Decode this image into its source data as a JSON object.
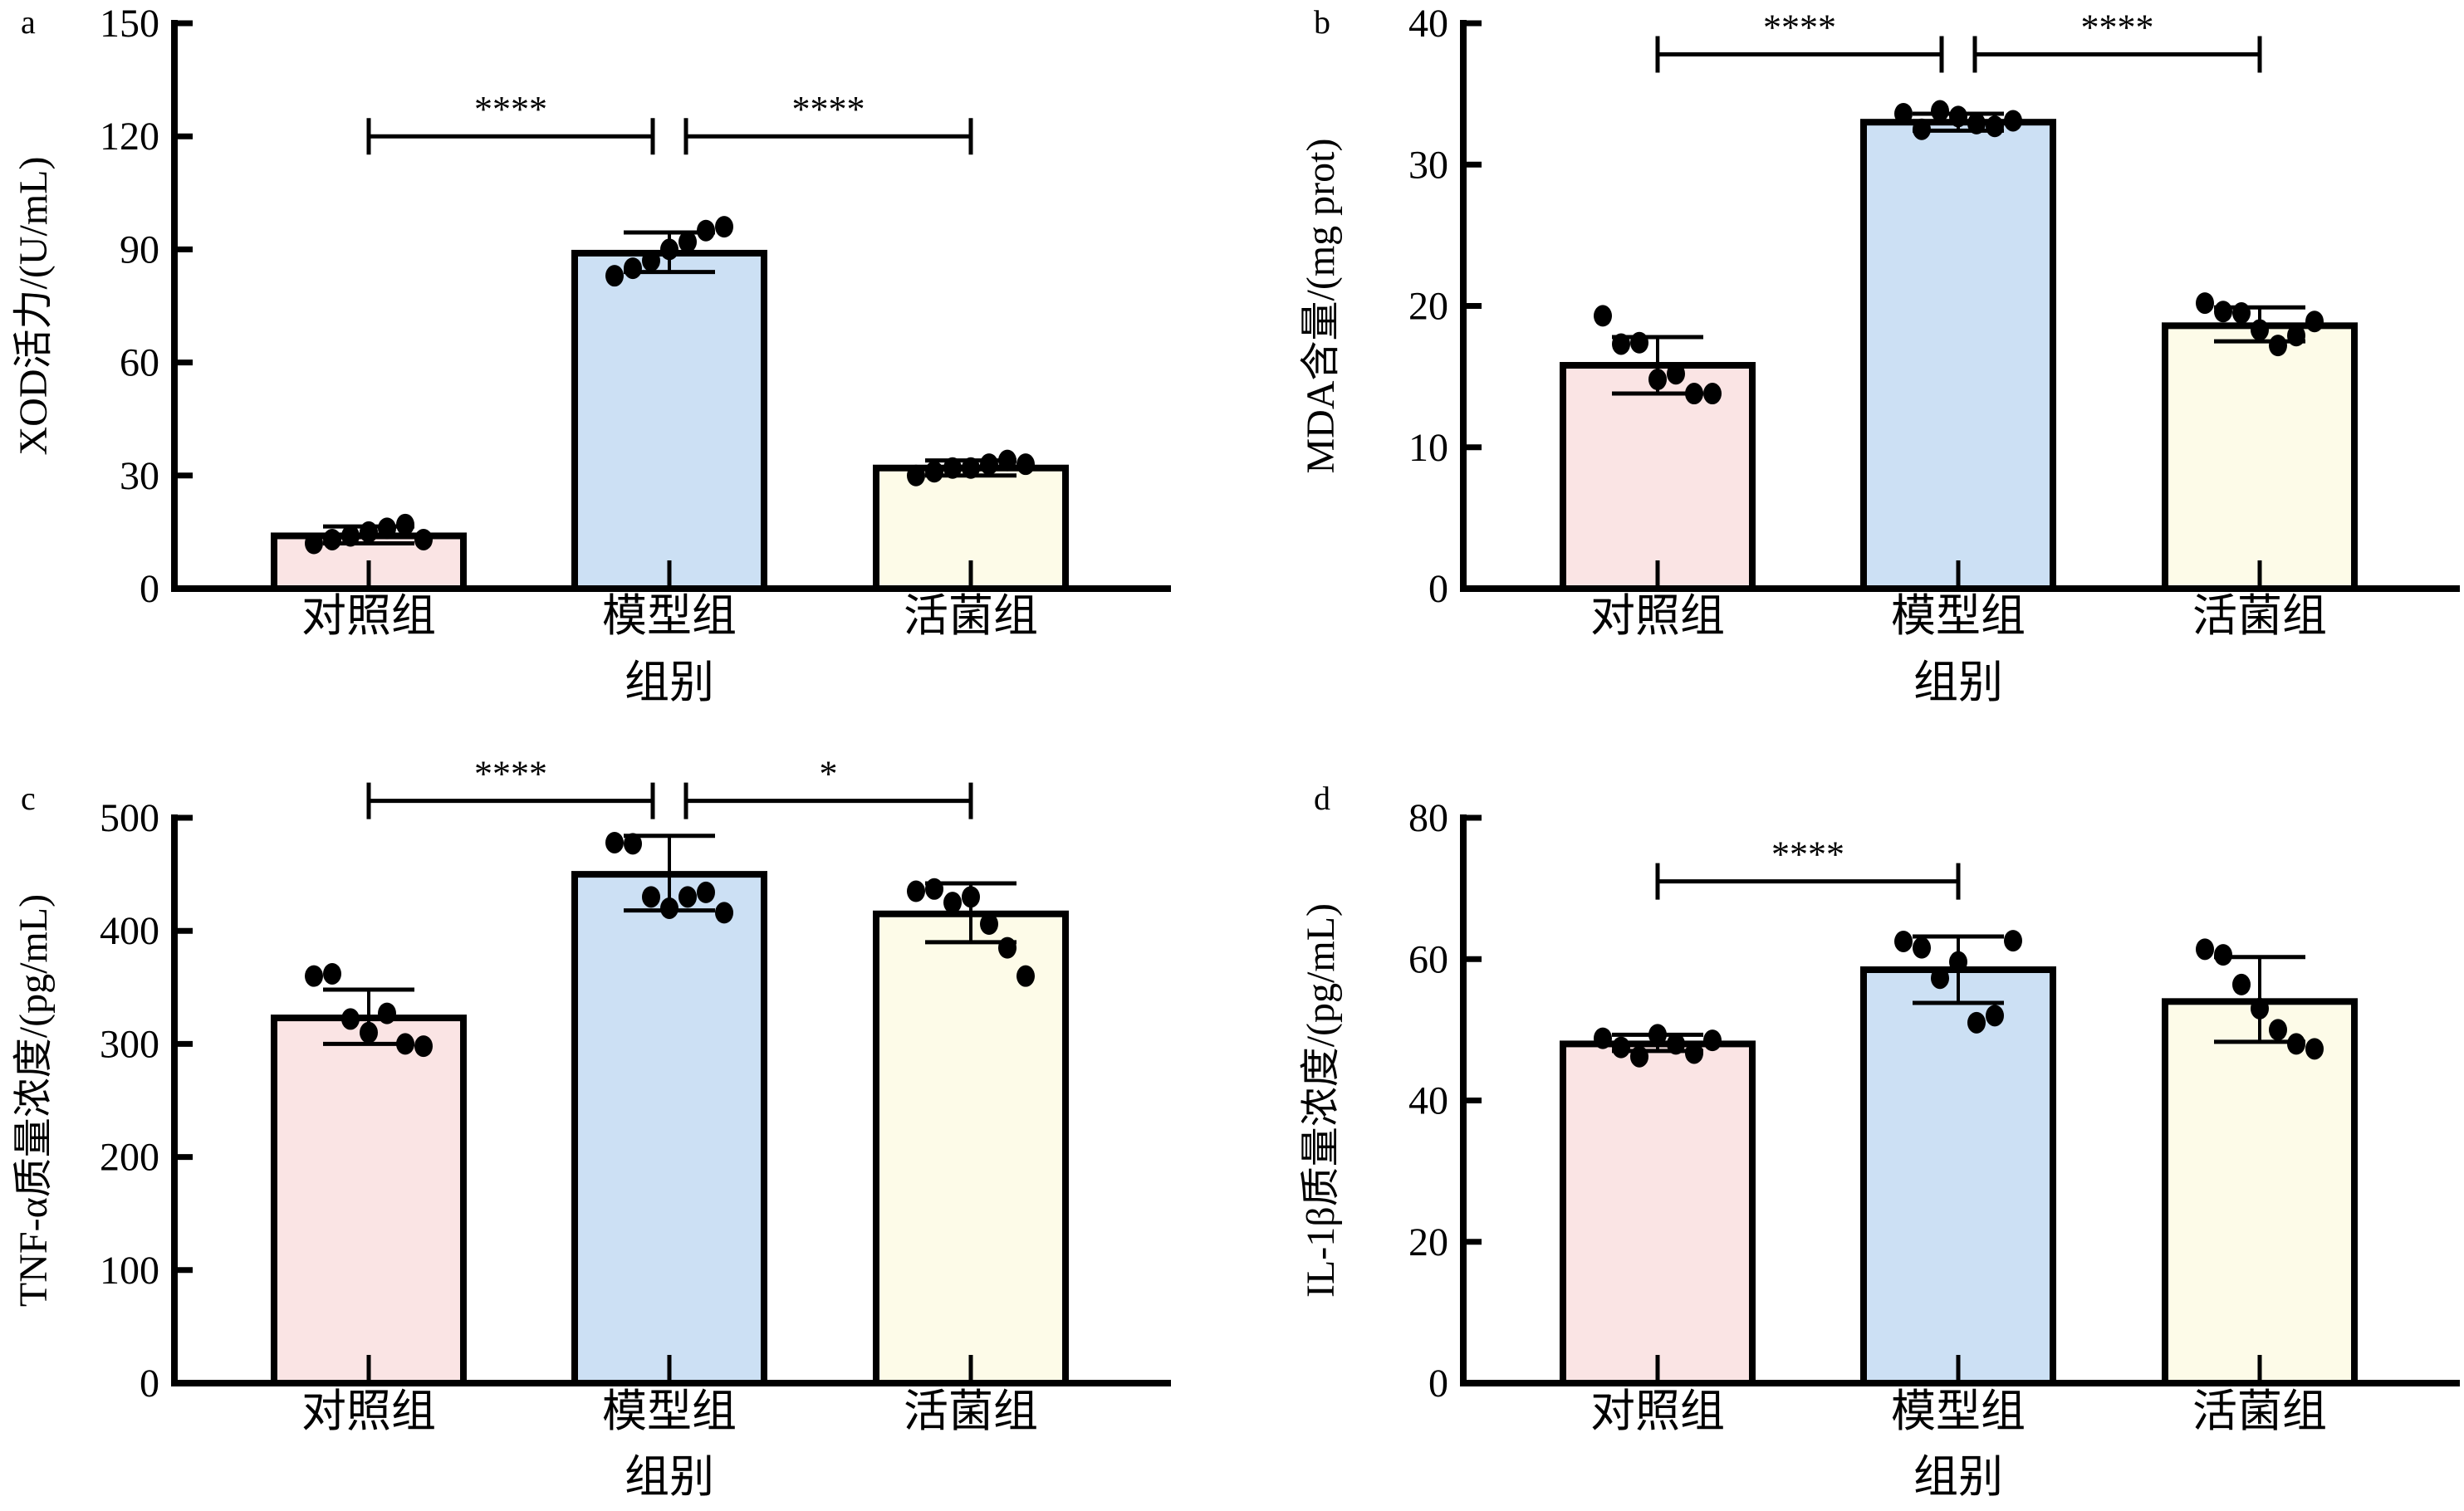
{
  "colors": {
    "control": "#FAE4E4",
    "model": "#CCE0F4",
    "live": "#FDFBE8",
    "axis": "#000000"
  },
  "chart_data": [
    {
      "type": "bar",
      "panel": "a",
      "categories": [
        "对照组",
        "模型组",
        "活菌组"
      ],
      "values": [
        14,
        89,
        32
      ],
      "sd_low": [
        12,
        84,
        30
      ],
      "sd_high": [
        16.5,
        94.5,
        34
      ],
      "points": [
        [
          12,
          13,
          14,
          15,
          16,
          17,
          13
        ],
        [
          83,
          85,
          87,
          90,
          92,
          95,
          96
        ],
        [
          30,
          31,
          32,
          32,
          33,
          34,
          33
        ]
      ],
      "ylabel": "XOD活力/(U/mL)",
      "xlabel": "组别",
      "ylim": [
        0,
        150
      ],
      "yticks": [
        0,
        30,
        60,
        90,
        120,
        150
      ],
      "significance": [
        {
          "from": 0,
          "to": 1,
          "label": "****",
          "level": 120
        },
        {
          "from": 1,
          "to": 2,
          "label": "****",
          "level": 120
        }
      ]
    },
    {
      "type": "bar",
      "panel": "b",
      "categories": [
        "对照组",
        "模型组",
        "活菌组"
      ],
      "values": [
        15.8,
        33.0,
        18.6
      ],
      "sd_low": [
        13.8,
        32.4,
        17.5
      ],
      "sd_high": [
        17.8,
        33.6,
        19.9
      ],
      "points": [
        [
          19.3,
          17.3,
          17.4,
          14.8,
          15.2,
          13.8,
          13.8
        ],
        [
          33.6,
          32.5,
          33.8,
          33.4,
          32.9,
          32.7,
          33.1
        ],
        [
          20.2,
          19.6,
          19.5,
          18.3,
          17.2,
          17.9,
          18.9
        ]
      ],
      "ylabel": "MDA含量/(mg prot)",
      "xlabel": "组别",
      "ylim": [
        0,
        40
      ],
      "yticks": [
        0,
        10,
        20,
        30,
        40
      ],
      "significance": [
        {
          "from": 0,
          "to": 1,
          "label": "****",
          "level": 37.8
        },
        {
          "from": 1,
          "to": 2,
          "label": "****",
          "level": 37.8
        }
      ]
    },
    {
      "type": "bar",
      "panel": "c",
      "categories": [
        "对照组",
        "模型组",
        "活菌组"
      ],
      "values": [
        323,
        450,
        415
      ],
      "sd_low": [
        300,
        418,
        390
      ],
      "sd_high": [
        348,
        484,
        442
      ],
      "points": [
        [
          360,
          362,
          322,
          310,
          327,
          300,
          298
        ],
        [
          478,
          477,
          430,
          420,
          430,
          434,
          416
        ],
        [
          435,
          437,
          425,
          430,
          406,
          385,
          360
        ]
      ],
      "ylabel": "TNF-α质量浓度/(pg/mL)",
      "xlabel": "组别",
      "ylim": [
        0,
        500
      ],
      "yticks": [
        0,
        100,
        200,
        300,
        400,
        500
      ],
      "significance": [
        {
          "from": 0,
          "to": 1,
          "label": "****",
          "level": 515
        },
        {
          "from": 1,
          "to": 2,
          "label": "*",
          "level": 515
        }
      ]
    },
    {
      "type": "bar",
      "panel": "d",
      "categories": [
        "对照组",
        "模型组",
        "活菌组"
      ],
      "values": [
        48,
        58.5,
        54
      ],
      "sd_low": [
        47,
        53.8,
        48.3
      ],
      "sd_high": [
        49.3,
        63.2,
        60.3
      ],
      "points": [
        [
          48.8,
          47.5,
          46.2,
          49.3,
          48,
          46.7,
          48.5
        ],
        [
          62.5,
          61.6,
          57.3,
          59.6,
          51,
          52,
          62.6
        ],
        [
          61.4,
          60.6,
          56.4,
          53,
          50,
          48,
          47.3
        ]
      ],
      "ylabel": "IL-1β质量浓度/(pg/mL)",
      "xlabel": "组别",
      "ylim": [
        0,
        80
      ],
      "yticks": [
        0,
        20,
        40,
        60,
        80
      ],
      "significance": [
        {
          "from": 0,
          "to": 1,
          "label": "****",
          "level": 71
        }
      ]
    }
  ]
}
